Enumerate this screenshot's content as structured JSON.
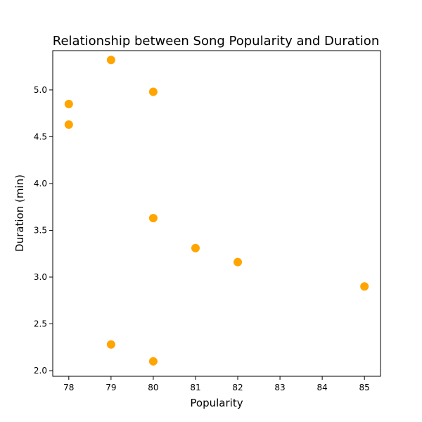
{
  "chart_data": {
    "type": "scatter",
    "title": "Relationship between Song Popularity and Duration",
    "xlabel": "Popularity",
    "ylabel": "Duration (min)",
    "xlim": [
      77.62,
      85.38
    ],
    "ylim": [
      1.94,
      5.42
    ],
    "xticks": [
      78,
      79,
      80,
      81,
      82,
      83,
      84,
      85
    ],
    "xtick_labels": [
      "78",
      "79",
      "80",
      "81",
      "82",
      "83",
      "84",
      "85"
    ],
    "yticks": [
      2.0,
      2.5,
      3.0,
      3.5,
      4.0,
      4.5,
      5.0
    ],
    "ytick_labels": [
      "2.0",
      "2.5",
      "3.0",
      "3.5",
      "4.0",
      "4.5",
      "5.0"
    ],
    "grid": false,
    "legend": false,
    "point_color": "#FFA500",
    "points": [
      {
        "x": 79,
        "y": 5.32
      },
      {
        "x": 80,
        "y": 4.98
      },
      {
        "x": 78,
        "y": 4.85
      },
      {
        "x": 78,
        "y": 4.63
      },
      {
        "x": 80,
        "y": 3.63
      },
      {
        "x": 81,
        "y": 3.31
      },
      {
        "x": 82,
        "y": 3.16
      },
      {
        "x": 85,
        "y": 2.9
      },
      {
        "x": 79,
        "y": 2.28
      },
      {
        "x": 80,
        "y": 2.1
      }
    ]
  }
}
